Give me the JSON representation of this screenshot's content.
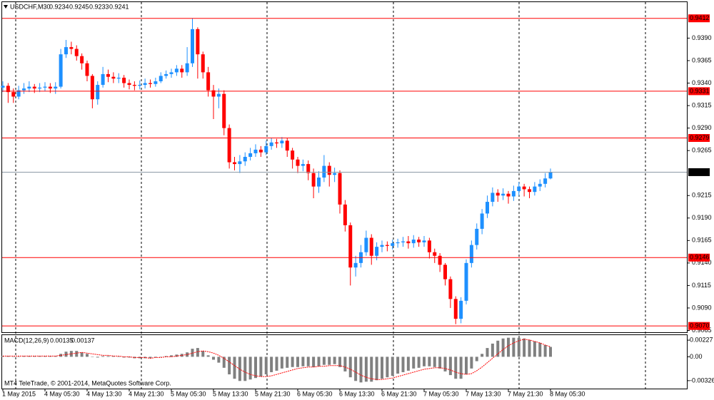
{
  "chart_data": [
    {
      "type": "candlestick",
      "title": "USDCHF,M30",
      "categories": [
        "1 May 2015",
        null,
        null,
        null,
        null,
        null,
        null,
        null,
        "4 May 05:30",
        null,
        null,
        null,
        null,
        null,
        null,
        null,
        "4 May 13:30",
        null,
        null,
        null,
        null,
        null,
        null,
        null,
        "4 May 21:30",
        null,
        null,
        null,
        null,
        null,
        null,
        null,
        "5 May 05:30",
        null,
        null,
        null,
        null,
        null,
        null,
        null,
        "5 May 13:30",
        null,
        null,
        null,
        null,
        null,
        null,
        null,
        "5 May 21:30",
        null,
        null,
        null,
        null,
        null,
        null,
        null,
        "6 May 05:30",
        null,
        null,
        null,
        null,
        null,
        null,
        null,
        "6 May 13:30",
        null,
        null,
        null,
        null,
        null,
        null,
        null,
        "6 May 21:30",
        null,
        null,
        null,
        null,
        null,
        null,
        null,
        "7 May 05:30",
        null,
        null,
        null,
        null,
        null,
        null,
        null,
        "7 May 13:30",
        null,
        null,
        null,
        null,
        null,
        null,
        null,
        "7 May 21:30",
        null,
        null,
        null,
        null,
        null,
        null,
        null,
        "8 May 05:30"
      ],
      "open": [
        0.9335,
        0.9337,
        0.933,
        0.9325,
        0.9332,
        0.9334,
        0.9336,
        0.9334,
        0.9335,
        0.9336,
        0.9334,
        0.9336,
        0.9372,
        0.938,
        0.9378,
        0.937,
        0.9362,
        0.9348,
        0.9322,
        0.9338,
        0.935,
        0.9347,
        0.9345,
        0.9346,
        0.934,
        0.9338,
        0.9337,
        0.9338,
        0.934,
        0.9339,
        0.9342,
        0.9348,
        0.935,
        0.9352,
        0.9356,
        0.9352,
        0.9362,
        0.94,
        0.9372,
        0.9352,
        0.9332,
        0.9325,
        0.9328,
        0.929,
        0.9252,
        0.925,
        0.9253,
        0.9258,
        0.9262,
        0.9266,
        0.9263,
        0.927,
        0.9274,
        0.9273,
        0.9276,
        0.9265,
        0.9255,
        0.9248,
        0.925,
        0.924,
        0.9225,
        0.9235,
        0.9248,
        0.9238,
        0.924,
        0.9205,
        0.9182,
        0.9135,
        0.914,
        0.9152,
        0.9168,
        0.9148,
        0.9158,
        0.916,
        0.9159,
        0.9162,
        0.9163,
        0.9164,
        0.9162,
        0.9166,
        0.9163,
        0.9165,
        0.9152,
        0.9148,
        0.9138,
        0.9122,
        0.91,
        0.9078,
        0.9098,
        0.914,
        0.916,
        0.9178,
        0.9195,
        0.9208,
        0.9218,
        0.9215,
        0.9217,
        0.9214,
        0.922,
        0.9225,
        0.9222,
        0.9219,
        0.9225,
        0.9228,
        0.9234
      ],
      "high": [
        0.9342,
        0.934,
        0.9334,
        0.9337,
        0.934,
        0.9342,
        0.9339,
        0.934,
        0.9341,
        0.934,
        0.9341,
        0.9378,
        0.9388,
        0.9386,
        0.9382,
        0.9373,
        0.9365,
        0.935,
        0.9342,
        0.9358,
        0.9355,
        0.9352,
        0.9351,
        0.9349,
        0.9344,
        0.9342,
        0.9343,
        0.9345,
        0.9344,
        0.9346,
        0.9352,
        0.9354,
        0.9356,
        0.936,
        0.936,
        0.938,
        0.9412,
        0.9402,
        0.9375,
        0.9358,
        0.9338,
        0.9334,
        0.9332,
        0.9294,
        0.9258,
        0.926,
        0.9263,
        0.9268,
        0.9272,
        0.927,
        0.9276,
        0.9279,
        0.9278,
        0.928,
        0.9279,
        0.9268,
        0.9258,
        0.9255,
        0.9254,
        0.9245,
        0.9242,
        0.926,
        0.9252,
        0.9246,
        0.9243,
        0.921,
        0.9185,
        0.9148,
        0.916,
        0.9176,
        0.9172,
        0.9163,
        0.9165,
        0.9164,
        0.9166,
        0.9167,
        0.9169,
        0.917,
        0.9171,
        0.9169,
        0.917,
        0.9168,
        0.9156,
        0.9151,
        0.914,
        0.9125,
        0.9103,
        0.9102,
        0.9144,
        0.9165,
        0.9184,
        0.92,
        0.9215,
        0.9224,
        0.9222,
        0.9223,
        0.922,
        0.9226,
        0.923,
        0.9228,
        0.9225,
        0.923,
        0.9233,
        0.924,
        0.9245
      ],
      "low": [
        0.933,
        0.9318,
        0.9318,
        0.9322,
        0.9328,
        0.933,
        0.9329,
        0.933,
        0.9331,
        0.9329,
        0.9328,
        0.9334,
        0.9368,
        0.9372,
        0.9365,
        0.9355,
        0.9342,
        0.9312,
        0.9316,
        0.9335,
        0.9341,
        0.934,
        0.934,
        0.9335,
        0.9333,
        0.9332,
        0.9333,
        0.9334,
        0.9335,
        0.9336,
        0.934,
        0.9345,
        0.9346,
        0.9348,
        0.9346,
        0.9348,
        0.9358,
        0.9345,
        0.9345,
        0.9325,
        0.93,
        0.9312,
        0.9282,
        0.9245,
        0.9243,
        0.924,
        0.9248,
        0.9254,
        0.9258,
        0.9258,
        0.926,
        0.9266,
        0.9268,
        0.9268,
        0.9258,
        0.9245,
        0.924,
        0.9242,
        0.9232,
        0.9212,
        0.9218,
        0.923,
        0.9225,
        0.923,
        0.9195,
        0.9175,
        0.9115,
        0.9125,
        0.9135,
        0.9148,
        0.9138,
        0.9143,
        0.9152,
        0.9153,
        0.9155,
        0.9157,
        0.9158,
        0.9156,
        0.9157,
        0.9158,
        0.9158,
        0.9145,
        0.914,
        0.913,
        0.9115,
        0.909,
        0.9072,
        0.9073,
        0.9094,
        0.9135,
        0.9155,
        0.9172,
        0.919,
        0.9203,
        0.9208,
        0.921,
        0.9206,
        0.9209,
        0.9215,
        0.9214,
        0.9212,
        0.9215,
        0.922,
        0.9224,
        0.9233
      ],
      "close": [
        0.9337,
        0.933,
        0.9325,
        0.9332,
        0.9334,
        0.9336,
        0.9334,
        0.9335,
        0.9336,
        0.9334,
        0.9336,
        0.9372,
        0.938,
        0.9378,
        0.937,
        0.9362,
        0.9348,
        0.9322,
        0.9338,
        0.935,
        0.9347,
        0.9345,
        0.9346,
        0.934,
        0.9338,
        0.9337,
        0.9338,
        0.934,
        0.9339,
        0.9342,
        0.9348,
        0.935,
        0.9352,
        0.9356,
        0.9352,
        0.9362,
        0.94,
        0.9372,
        0.9352,
        0.9332,
        0.9325,
        0.9328,
        0.929,
        0.9252,
        0.925,
        0.9253,
        0.9258,
        0.9262,
        0.9266,
        0.9263,
        0.927,
        0.9274,
        0.9273,
        0.9276,
        0.9265,
        0.9255,
        0.9248,
        0.925,
        0.924,
        0.9225,
        0.9235,
        0.9248,
        0.9238,
        0.924,
        0.9205,
        0.9182,
        0.9135,
        0.914,
        0.9152,
        0.9168,
        0.9148,
        0.9158,
        0.916,
        0.9159,
        0.9162,
        0.9163,
        0.9164,
        0.9162,
        0.9166,
        0.9163,
        0.9165,
        0.9152,
        0.9148,
        0.9138,
        0.9122,
        0.91,
        0.9078,
        0.9098,
        0.914,
        0.916,
        0.9178,
        0.9195,
        0.9208,
        0.9218,
        0.9215,
        0.9217,
        0.9214,
        0.922,
        0.9225,
        0.9222,
        0.9219,
        0.9225,
        0.9228,
        0.9234,
        0.9241
      ],
      "up_color": "#1e90ff",
      "down_color": "#ff0000",
      "ylim": [
        0.9063,
        0.943
      ],
      "yticks": [
        {
          "value": 0.939,
          "label": "0.9390"
        },
        {
          "value": 0.9365,
          "label": "0.9365"
        },
        {
          "value": 0.934,
          "label": "0.9340"
        },
        {
          "value": 0.9315,
          "label": "0.9315"
        },
        {
          "value": 0.929,
          "label": "0.9290"
        },
        {
          "value": 0.9265,
          "label": "0.9265"
        },
        {
          "value": 0.9215,
          "label": "0.9215"
        },
        {
          "value": 0.919,
          "label": "0.9190"
        },
        {
          "value": 0.9165,
          "label": "0.9165"
        },
        {
          "value": 0.914,
          "label": "0.9140"
        },
        {
          "value": 0.9115,
          "label": "0.9115"
        },
        {
          "value": 0.909,
          "label": "0.9090"
        },
        {
          "value": 0.9065,
          "label": "0.9065"
        }
      ],
      "levels": [
        {
          "value": 0.9412,
          "label": "0.9412"
        },
        {
          "value": 0.9331,
          "label": "0.9331"
        },
        {
          "value": 0.9279,
          "label": "0.9279"
        },
        {
          "value": 0.9146,
          "label": "0.9146"
        },
        {
          "value": 0.907,
          "label": "0.9070"
        }
      ],
      "level_color": "#ff0000",
      "price_line_color": "#8c9aa6",
      "grid": false
    },
    {
      "type": "macd",
      "title": "MACD(12,26,9)",
      "values": [
        0.0001,
        0.0001,
        0.0,
        0.0,
        0.0001,
        0.0001,
        0.0001,
        0.0001,
        0.0001,
        0.0001,
        0.0001,
        0.0004,
        0.0007,
        0.0008,
        0.0008,
        0.0006,
        0.0004,
        0.0,
        -0.0001,
        0.0001,
        0.0001,
        0.0001,
        0.0,
        -0.0001,
        -0.0001,
        -0.0002,
        -0.0002,
        -0.0002,
        -0.0002,
        -0.0001,
        0.0,
        0.0001,
        0.0002,
        0.0003,
        0.0004,
        0.0006,
        0.0011,
        0.0012,
        0.0008,
        0.0002,
        -0.0004,
        -0.0008,
        -0.0015,
        -0.0024,
        -0.003,
        -0.0033,
        -0.0033,
        -0.0031,
        -0.0029,
        -0.0027,
        -0.0024,
        -0.0021,
        -0.0019,
        -0.0016,
        -0.0015,
        -0.0014,
        -0.0014,
        -0.0013,
        -0.0013,
        -0.0014,
        -0.0013,
        -0.0011,
        -0.0011,
        -0.001,
        -0.0014,
        -0.002,
        -0.0028,
        -0.0033,
        -0.0035,
        -0.0034,
        -0.0034,
        -0.0032,
        -0.003,
        -0.0028,
        -0.0026,
        -0.0023,
        -0.0021,
        -0.0019,
        -0.0016,
        -0.0015,
        -0.0013,
        -0.0013,
        -0.0014,
        -0.0016,
        -0.002,
        -0.0025,
        -0.003,
        -0.003,
        -0.0024,
        -0.0016,
        -0.0006,
        0.0004,
        0.0012,
        0.0018,
        0.0022,
        0.0025,
        0.0026,
        0.0026,
        0.0026,
        0.0025,
        0.0023,
        0.0021,
        0.0019,
        0.0016,
        0.00135
      ],
      "color": "#808080",
      "signal": [
        0.0001,
        0.0001,
        0.0001,
        0.0001,
        0.0001,
        0.0001,
        0.0001,
        0.0001,
        0.0001,
        0.0001,
        0.0001,
        0.0002,
        0.0003,
        0.0004,
        0.0005,
        0.0006,
        0.0005,
        0.0004,
        0.0003,
        0.0002,
        0.0002,
        0.0001,
        0.0001,
        0.0,
        0.0,
        -0.0001,
        -0.0001,
        -0.0001,
        -0.0002,
        -0.0001,
        -0.0001,
        0.0,
        0.0,
        0.0001,
        0.0002,
        0.0003,
        0.0005,
        0.0007,
        0.0008,
        0.0007,
        0.0005,
        0.0002,
        -0.0002,
        -0.0007,
        -0.0012,
        -0.0017,
        -0.0021,
        -0.0024,
        -0.0026,
        -0.0027,
        -0.0027,
        -0.0026,
        -0.0024,
        -0.0022,
        -0.002,
        -0.0018,
        -0.0016,
        -0.0015,
        -0.0014,
        -0.0014,
        -0.0013,
        -0.0013,
        -0.0012,
        -0.0012,
        -0.0012,
        -0.0014,
        -0.0017,
        -0.0021,
        -0.0025,
        -0.0028,
        -0.003,
        -0.0031,
        -0.0031,
        -0.003,
        -0.0029,
        -0.0027,
        -0.0025,
        -0.0023,
        -0.0021,
        -0.0019,
        -0.0017,
        -0.0016,
        -0.0015,
        -0.0015,
        -0.0016,
        -0.0018,
        -0.0021,
        -0.0023,
        -0.0024,
        -0.0023,
        -0.0019,
        -0.0014,
        -0.0008,
        -0.0002,
        0.0004,
        0.001,
        0.0015,
        0.0019,
        0.0022,
        0.0024,
        0.0023,
        0.0021,
        0.0019,
        0.0016,
        0.00137
      ],
      "signal_color": "#ff0000",
      "ylim": [
        -0.00444,
        0.00296
      ],
      "yticks": [
        0.00227,
        {
          "value": 0,
          "label": "0.00"
        },
        -0.00326
      ],
      "annotation": "MT4 TeleTrade, © 2001-2014, MetaQuotes Software Corp."
    }
  ]
}
